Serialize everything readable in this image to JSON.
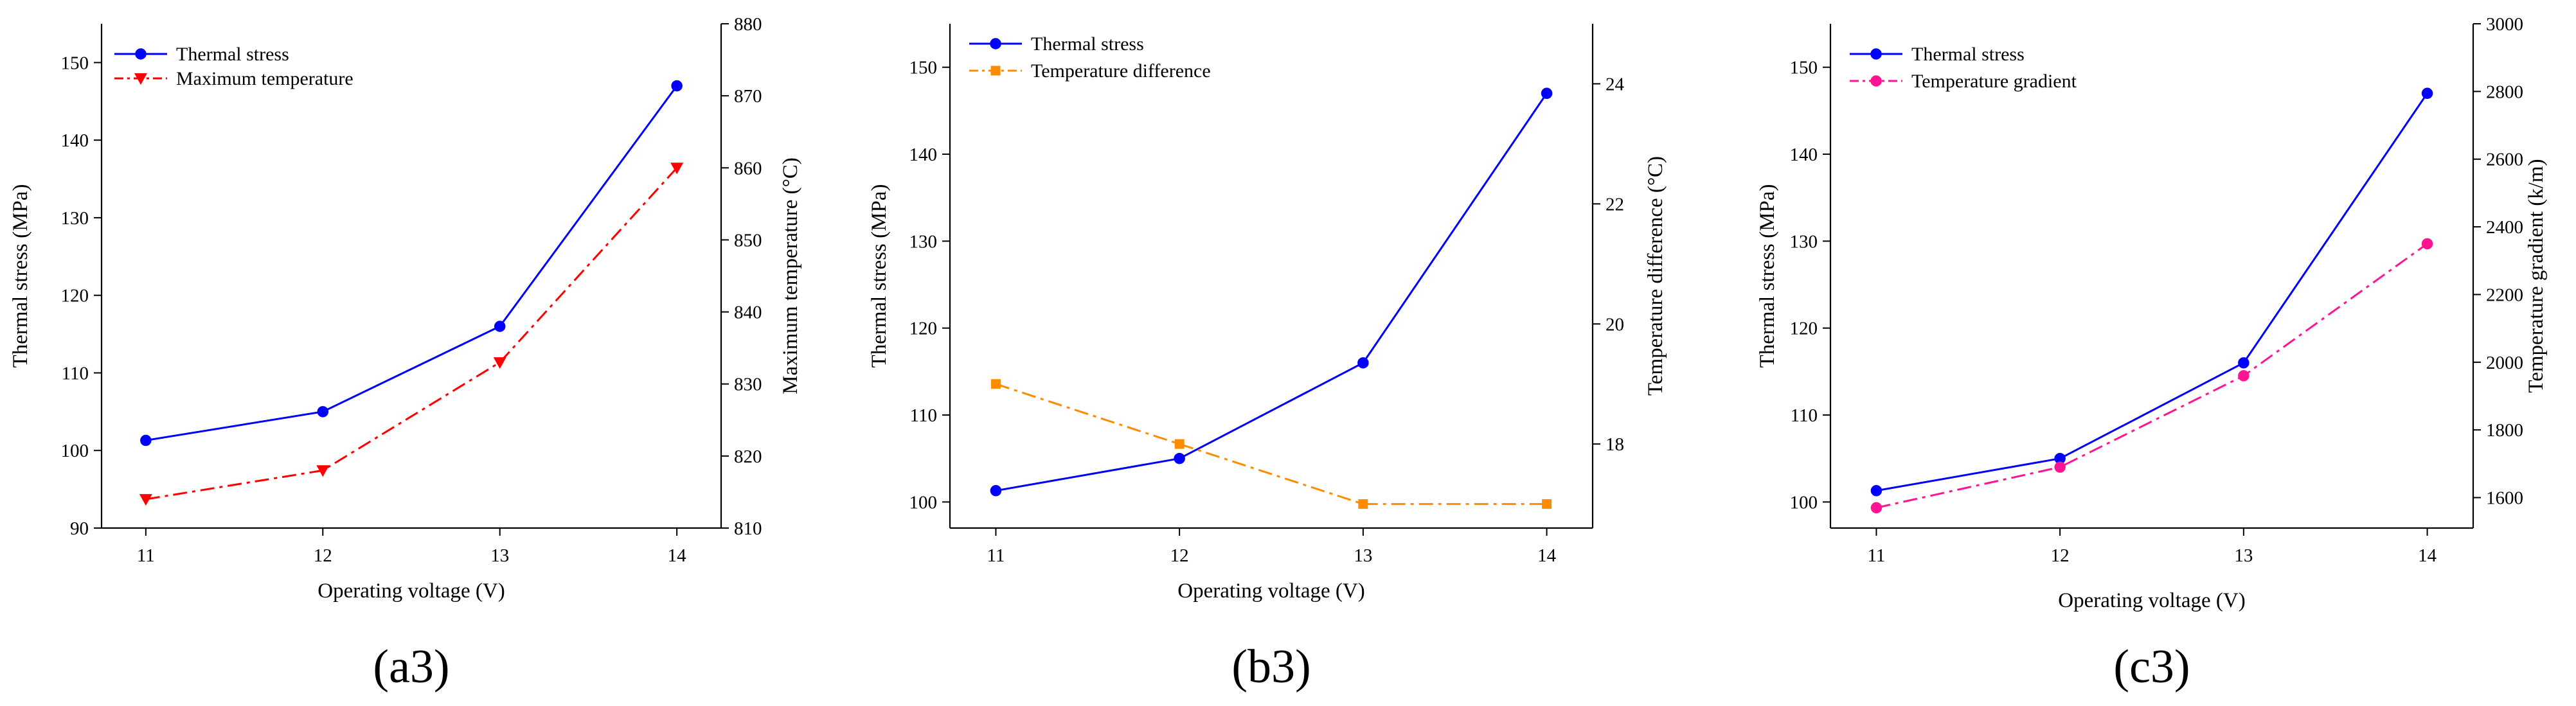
{
  "chart_data": [
    {
      "panel_label": "(a3)",
      "type": "line",
      "xlabel": "Operating voltage (V)",
      "ylabel": "Thermal stress (MPa)",
      "y2label": "Maximum temperature (°C)",
      "x": [
        11,
        12,
        13,
        14
      ],
      "x_ticks": [
        11,
        12,
        13,
        14
      ],
      "xlim": [
        10.75,
        14.25
      ],
      "ylim": [
        90,
        155
      ],
      "y_ticks": [
        90,
        100,
        110,
        120,
        130,
        140,
        150
      ],
      "y2lim": [
        810,
        880
      ],
      "y2_ticks": [
        810,
        820,
        830,
        840,
        850,
        860,
        870,
        880
      ],
      "legend_position": "top-left",
      "series": [
        {
          "name": "Thermal stress",
          "axis": "left",
          "values": [
            101.3,
            105,
            116,
            147
          ],
          "color": "#0000ff",
          "marker": "circle",
          "dash": "solid"
        },
        {
          "name": "Maximum temperature",
          "axis": "right",
          "values": [
            814,
            818,
            833,
            860
          ],
          "color": "#ff0000",
          "marker": "triangle-down",
          "dash": "dashdot"
        }
      ]
    },
    {
      "panel_label": "(b3)",
      "type": "line",
      "xlabel": "Operating voltage (V)",
      "ylabel": "Thermal stress (MPa)",
      "y2label": "Temperature difference (°C)",
      "x": [
        11,
        12,
        13,
        14
      ],
      "x_ticks": [
        11,
        12,
        13,
        14
      ],
      "xlim": [
        10.75,
        14.25
      ],
      "ylim": [
        97,
        155
      ],
      "y_ticks": [
        100,
        110,
        120,
        130,
        140,
        150
      ],
      "y2lim": [
        16.6,
        25
      ],
      "y2_ticks": [
        18,
        20,
        22,
        24
      ],
      "legend_position": "top-left",
      "series": [
        {
          "name": "Thermal stress",
          "axis": "left",
          "values": [
            101.3,
            105,
            116,
            147
          ],
          "color": "#0000ff",
          "marker": "circle",
          "dash": "solid"
        },
        {
          "name": "Temperature difference",
          "axis": "right",
          "values": [
            19,
            18,
            17,
            17
          ],
          "color": "#ff8c00",
          "marker": "square",
          "dash": "dashdot"
        }
      ]
    },
    {
      "panel_label": "(c3)",
      "type": "line",
      "xlabel": "Operating voltage (V)",
      "ylabel": "Thermal stress (MPa)",
      "y2label": "Temperature gradient (k/m)",
      "x": [
        11,
        12,
        13,
        14
      ],
      "x_ticks": [
        11,
        12,
        13,
        14
      ],
      "xlim": [
        10.75,
        14.25
      ],
      "ylim": [
        97,
        155
      ],
      "y_ticks": [
        100,
        110,
        120,
        130,
        140,
        150
      ],
      "y2lim": [
        1510,
        3000
      ],
      "y2_ticks": [
        1600,
        1800,
        2000,
        2200,
        2400,
        2600,
        2800,
        3000
      ],
      "legend_position": "top-left",
      "series": [
        {
          "name": "Thermal stress",
          "axis": "left",
          "values": [
            101.3,
            105,
            116,
            147
          ],
          "color": "#0000ff",
          "marker": "circle",
          "dash": "solid"
        },
        {
          "name": "Temperature gradient",
          "axis": "right",
          "values": [
            1570,
            1690,
            1960,
            2350
          ],
          "color": "#ff1493",
          "marker": "circle",
          "dash": "dashdot"
        }
      ]
    }
  ]
}
